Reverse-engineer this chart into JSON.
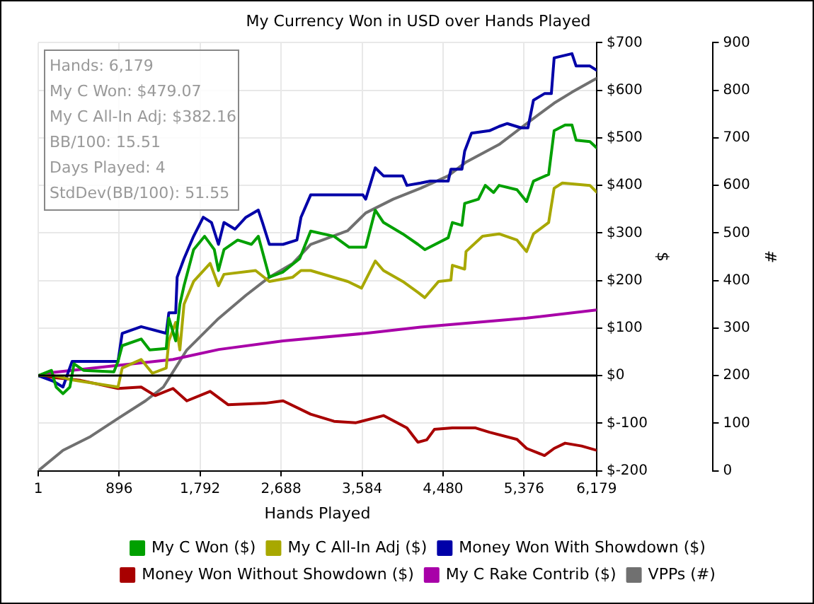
{
  "chart_data": {
    "type": "line",
    "title": "My Currency Won in USD over Hands Played",
    "xlabel": "Hands Played",
    "ylabel": "$",
    "y2label": "#",
    "annotations": [
      "Hands: 6,179",
      "My C Won: $479.07",
      "My C All-In Adj: $382.16",
      "BB/100: 15.51",
      "Days Played: 4",
      "StdDev(BB/100): 51.55"
    ],
    "xlim": [
      1,
      6179
    ],
    "xticks": [
      1,
      896,
      {
        "value": 1792,
        "label": "1,792"
      },
      {
        "value": 2688,
        "label": "2,688"
      },
      {
        "value": 3584,
        "label": "3,584"
      },
      {
        "value": 4480,
        "label": "4,480"
      },
      {
        "value": 5376,
        "label": "5,376"
      },
      {
        "value": 6179,
        "label": "6,179"
      }
    ],
    "ylim": [
      -200,
      700
    ],
    "yticks": [
      {
        "value": -200,
        "label": "$-200"
      },
      {
        "value": -100,
        "label": "$-100"
      },
      {
        "value": 0,
        "label": "$0"
      },
      {
        "value": 100,
        "label": "$100"
      },
      {
        "value": 200,
        "label": "$200"
      },
      {
        "value": 300,
        "label": "$300"
      },
      {
        "value": 400,
        "label": "$400"
      },
      {
        "value": 500,
        "label": "$500"
      },
      {
        "value": 600,
        "label": "$600"
      },
      {
        "value": 700,
        "label": "$700"
      }
    ],
    "y2lim": [
      0,
      900
    ],
    "y2ticks": [
      0,
      100,
      200,
      300,
      400,
      500,
      600,
      700,
      800,
      900
    ],
    "grid": true,
    "legend": "bottom",
    "marker": "none",
    "line_style": "solid",
    "ref_lines": [
      {
        "axis": "y",
        "value": 0,
        "color": "#000000"
      }
    ],
    "series": [
      {
        "name": "My C Won ($)",
        "color": "#00a000",
        "x": [
          1,
          148,
          199,
          275,
          351,
          397,
          503,
          838,
          884,
          930,
          1140,
          1234,
          1417,
          1446,
          1522,
          1568,
          1614,
          1720,
          1842,
          1949,
          1995,
          2056,
          2208,
          2360,
          2436,
          2558,
          2710,
          2893,
          3015,
          3274,
          3441,
          3624,
          3730,
          3821,
          4034,
          4202,
          4278,
          4537,
          4583,
          4689,
          4719,
          4871,
          4947,
          5039,
          5100,
          5298,
          5404,
          5480,
          5648,
          5709,
          5830,
          5906,
          5952,
          6105,
          6179
        ],
        "values": [
          0,
          11,
          -24,
          -38,
          -24,
          25,
          11,
          8,
          30,
          63,
          77,
          54,
          57,
          121,
          73,
          150,
          189,
          265,
          293,
          265,
          221,
          265,
          285,
          276,
          293,
          207,
          218,
          246,
          304,
          293,
          270,
          270,
          348,
          322,
          298,
          276,
          265,
          290,
          322,
          316,
          362,
          371,
          400,
          385,
          400,
          391,
          366,
          409,
          423,
          515,
          527,
          527,
          495,
          492,
          479
        ]
      },
      {
        "name": "My C All-In Adj ($)",
        "color": "#a8a800",
        "x": [
          1,
          170,
          381,
          884,
          930,
          1140,
          1264,
          1417,
          1446,
          1522,
          1568,
          1614,
          1720,
          1903,
          1995,
          2056,
          2406,
          2558,
          2817,
          2908,
          3015,
          3426,
          3578,
          3730,
          3821,
          4034,
          4202,
          4278,
          4430,
          4567,
          4583,
          4719,
          4734,
          4917,
          5100,
          5298,
          5404,
          5480,
          5648,
          5709,
          5800,
          6105,
          6179
        ],
        "values": [
          0,
          0,
          -9,
          -24,
          16,
          34,
          5,
          16,
          73,
          112,
          54,
          150,
          198,
          236,
          189,
          213,
          221,
          198,
          207,
          221,
          221,
          198,
          184,
          241,
          221,
          198,
          175,
          164,
          198,
          201,
          232,
          224,
          261,
          293,
          298,
          285,
          261,
          298,
          322,
          394,
          405,
          400,
          386
        ]
      },
      {
        "name": "Money Won With Showdown ($)",
        "color": "#0000a8",
        "x": [
          1,
          170,
          275,
          376,
          884,
          930,
          1140,
          1417,
          1446,
          1522,
          1538,
          1614,
          1720,
          1827,
          1918,
          1995,
          2056,
          2178,
          2299,
          2436,
          2482,
          2558,
          2710,
          2863,
          2908,
          3015,
          3593,
          3624,
          3730,
          3821,
          4034,
          4080,
          4232,
          4339,
          4537,
          4567,
          4689,
          4719,
          4795,
          4993,
          5100,
          5191,
          5343,
          5419,
          5480,
          5602,
          5678,
          5709,
          5906,
          5952,
          6105,
          6179
        ],
        "values": [
          0,
          -12,
          -24,
          30,
          30,
          89,
          103,
          89,
          132,
          132,
          207,
          246,
          293,
          333,
          322,
          276,
          322,
          308,
          333,
          348,
          322,
          276,
          276,
          285,
          333,
          380,
          380,
          371,
          437,
          420,
          420,
          400,
          405,
          409,
          409,
          434,
          434,
          472,
          510,
          515,
          524,
          530,
          521,
          521,
          579,
          593,
          593,
          668,
          677,
          651,
          651,
          642
        ]
      },
      {
        "name": "Money Won Without Showdown ($)",
        "color": "#a80000",
        "x": [
          1,
          170,
          470,
          884,
          1140,
          1295,
          1492,
          1645,
          1903,
          2101,
          2512,
          2710,
          3015,
          3274,
          3517,
          3821,
          4080,
          4202,
          4300,
          4384,
          4583,
          4840,
          4993,
          5298,
          5404,
          5602,
          5709,
          5830,
          6013,
          6179
        ],
        "values": [
          0,
          -4,
          -10,
          -27,
          -24,
          -42,
          -27,
          -53,
          -33,
          -61,
          -58,
          -53,
          -81,
          -96,
          -99,
          -84,
          -110,
          -140,
          -135,
          -113,
          -110,
          -110,
          -119,
          -134,
          -153,
          -168,
          -153,
          -142,
          -148,
          -157
        ]
      },
      {
        "name": "My C Rake Contrib ($)",
        "color": "#a800a8",
        "x": [
          1,
          170,
          800,
          1492,
          2000,
          2710,
          3624,
          4232,
          5404,
          6179
        ],
        "values": [
          0,
          7,
          20,
          34,
          55,
          73,
          89,
          102,
          121,
          138
        ]
      },
      {
        "name": "VPPs (#)",
        "color": "#707070",
        "axis": "y2",
        "x": [
          1,
          275,
          580,
          884,
          1188,
          1386,
          1645,
          1995,
          2299,
          2558,
          2817,
          3015,
          3426,
          3624,
          3928,
          4232,
          4537,
          4734,
          5100,
          5404,
          5709,
          5906,
          6179
        ],
        "values": [
          0,
          43,
          72,
          110,
          147,
          176,
          254,
          320,
          369,
          407,
          436,
          476,
          505,
          542,
          571,
          594,
          620,
          649,
          686,
          730,
          773,
          796,
          825
        ]
      }
    ]
  }
}
